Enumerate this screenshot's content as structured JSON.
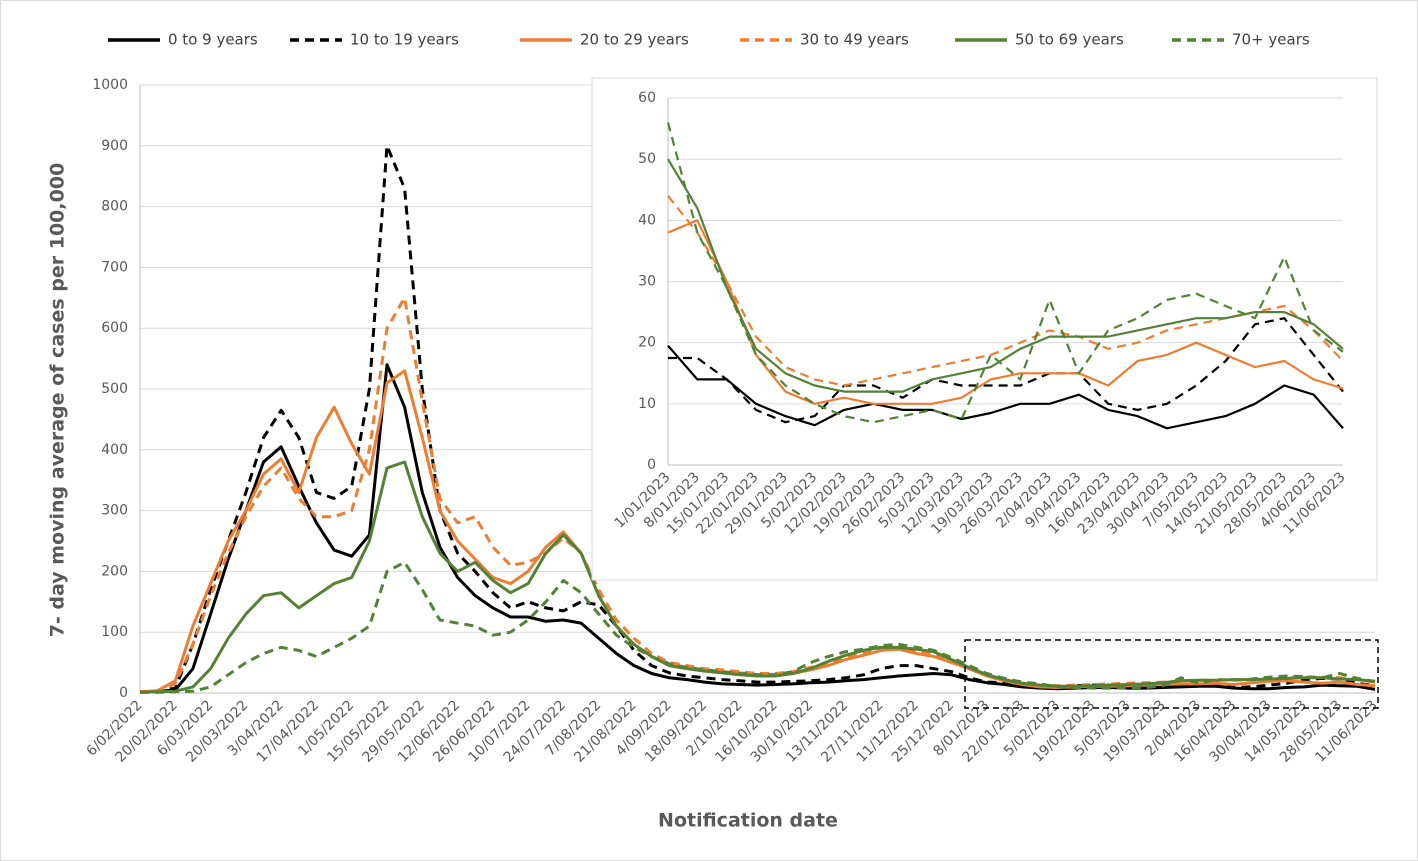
{
  "chart_data": [
    {
      "type": "line",
      "x_label": "Notification date",
      "y_label": "7- day moving average of cases per 100,000",
      "categories": [
        "6/02/2022",
        null,
        "20/02/2022",
        null,
        "6/03/2022",
        null,
        "20/03/2022",
        null,
        "3/04/2022",
        null,
        "17/04/2022",
        null,
        "1/05/2022",
        null,
        "15/05/2022",
        null,
        "29/05/2022",
        null,
        "12/06/2022",
        null,
        "26/06/2022",
        null,
        "10/07/2022",
        null,
        "24/07/2022",
        null,
        "7/08/2022",
        null,
        "21/08/2022",
        null,
        "4/09/2022",
        null,
        "18/09/2022",
        null,
        "2/10/2022",
        null,
        "16/10/2022",
        null,
        "30/10/2022",
        null,
        "13/11/2022",
        null,
        "27/11/2022",
        null,
        "11/12/2022",
        null,
        "25/12/2022",
        null,
        "8/01/2023",
        null,
        "22/01/2023",
        null,
        "5/02/2023",
        null,
        "19/02/2023",
        null,
        "5/03/2023",
        null,
        "19/03/2023",
        null,
        "2/04/2023",
        null,
        "16/04/2023",
        null,
        "30/04/2023",
        null,
        "14/05/2023",
        null,
        "28/05/2023",
        null,
        "11/06/2023"
      ],
      "ylim": [
        0,
        1000
      ],
      "yticks": [
        0,
        100,
        200,
        300,
        400,
        500,
        600,
        700,
        800,
        900,
        1000
      ],
      "grid": true,
      "legend": "top",
      "series": [
        {
          "name": "0 to 9 years",
          "color": "#000000",
          "dashed": false,
          "values": [
            2,
            3,
            5,
            40,
            130,
            220,
            300,
            380,
            405,
            340,
            280,
            235,
            225,
            260,
            540,
            470,
            330,
            240,
            190,
            160,
            140,
            125,
            125,
            118,
            120,
            115,
            90,
            65,
            45,
            32,
            25,
            22,
            18,
            15,
            14,
            13,
            14,
            15,
            17,
            18,
            20,
            22,
            25,
            28,
            30,
            32,
            30,
            22,
            17,
            14,
            10,
            8,
            7,
            8,
            9,
            9,
            8,
            8,
            9,
            10,
            11,
            11,
            8,
            7,
            7,
            9,
            10,
            13,
            12,
            11,
            6
          ]
        },
        {
          "name": "10 to 19 years",
          "color": "#000000",
          "dashed": true,
          "values": [
            2,
            3,
            8,
            80,
            170,
            250,
            330,
            420,
            465,
            420,
            330,
            320,
            340,
            500,
            900,
            830,
            500,
            300,
            230,
            200,
            165,
            140,
            150,
            140,
            135,
            150,
            145,
            110,
            70,
            45,
            33,
            28,
            25,
            22,
            20,
            18,
            18,
            19,
            20,
            22,
            25,
            30,
            40,
            45,
            45,
            40,
            35,
            25,
            18,
            17,
            15,
            10,
            8,
            12,
            13,
            13,
            13,
            12,
            13,
            14,
            14,
            16,
            9,
            10,
            13,
            16,
            22,
            24,
            23,
            16,
            12
          ]
        },
        {
          "name": "20 to 29 years",
          "color": "#ed7d31",
          "dashed": false,
          "values": [
            2,
            4,
            20,
            110,
            180,
            250,
            300,
            360,
            385,
            330,
            420,
            470,
            410,
            360,
            510,
            530,
            420,
            300,
            250,
            220,
            190,
            180,
            200,
            240,
            265,
            230,
            160,
            110,
            80,
            60,
            45,
            42,
            38,
            35,
            33,
            30,
            30,
            32,
            38,
            45,
            55,
            62,
            70,
            72,
            65,
            60,
            50,
            40,
            28,
            20,
            14,
            10,
            9,
            10,
            11,
            11,
            12,
            13,
            14,
            15,
            15,
            16,
            14,
            17,
            19,
            20,
            18,
            16,
            18,
            14,
            12
          ]
        },
        {
          "name": "30 to 49 years",
          "color": "#ed7d31",
          "dashed": true,
          "values": [
            2,
            3,
            15,
            80,
            160,
            230,
            290,
            340,
            370,
            320,
            290,
            290,
            300,
            400,
            600,
            650,
            480,
            320,
            280,
            290,
            240,
            210,
            215,
            230,
            255,
            230,
            170,
            120,
            90,
            65,
            50,
            45,
            40,
            38,
            35,
            32,
            32,
            35,
            42,
            50,
            58,
            65,
            72,
            75,
            70,
            62,
            52,
            42,
            30,
            22,
            16,
            13,
            12,
            13,
            14,
            15,
            16,
            17,
            18,
            20,
            21,
            21,
            22,
            22,
            23,
            25,
            26,
            26,
            25,
            22,
            18
          ]
        },
        {
          "name": "50 to 69 years",
          "color": "#538135",
          "dashed": false,
          "values": [
            1,
            2,
            3,
            10,
            40,
            90,
            130,
            160,
            165,
            140,
            160,
            180,
            190,
            250,
            370,
            380,
            290,
            230,
            200,
            215,
            185,
            165,
            180,
            230,
            260,
            230,
            160,
            110,
            80,
            60,
            45,
            40,
            36,
            33,
            30,
            28,
            28,
            32,
            40,
            52,
            62,
            70,
            75,
            75,
            72,
            68,
            55,
            42,
            30,
            22,
            16,
            13,
            11,
            11,
            12,
            13,
            14,
            15,
            17,
            20,
            21,
            21,
            22,
            22,
            23,
            24,
            25,
            25,
            23,
            22,
            19
          ]
        },
        {
          "name": "70+ years",
          "color": "#538135",
          "dashed": true,
          "values": [
            1,
            1,
            2,
            3,
            10,
            30,
            50,
            65,
            75,
            70,
            60,
            75,
            90,
            110,
            200,
            215,
            170,
            120,
            115,
            110,
            95,
            100,
            120,
            150,
            185,
            165,
            130,
            95,
            75,
            60,
            48,
            42,
            38,
            35,
            32,
            30,
            30,
            35,
            50,
            60,
            68,
            72,
            78,
            80,
            75,
            70,
            58,
            45,
            32,
            24,
            18,
            15,
            10,
            9,
            8,
            8,
            9,
            9,
            12,
            25,
            16,
            22,
            21,
            23,
            26,
            28,
            27,
            25,
            32,
            24,
            19
          ]
        }
      ]
    },
    {
      "type": "line",
      "categories": [
        "1/01/2023",
        "8/01/2023",
        "15/01/2023",
        "22/01/2023",
        "29/01/2023",
        "5/02/2023",
        "12/02/2023",
        "19/02/2023",
        "26/02/2023",
        "5/03/2023",
        "12/03/2023",
        "19/03/2023",
        "26/03/2023",
        "2/04/2023",
        "9/04/2023",
        "16/04/2023",
        "23/04/2023",
        "30/04/2023",
        "7/05/2023",
        "14/05/2023",
        "21/05/2023",
        "28/05/2023",
        "4/06/2023",
        "11/06/2023"
      ],
      "ylim": [
        0,
        60
      ],
      "yticks": [
        0,
        10,
        20,
        30,
        40,
        50,
        60
      ],
      "grid": true,
      "series": [
        {
          "color": "#000000",
          "dashed": false,
          "values": [
            19.5,
            14,
            14,
            10,
            8,
            6.5,
            9,
            10,
            9,
            9,
            7.5,
            8.5,
            10,
            10,
            11.5,
            9,
            8,
            6,
            7,
            8,
            10,
            13,
            11.5,
            6
          ]
        },
        {
          "color": "#000000",
          "dashed": true,
          "values": [
            17.5,
            17.5,
            14,
            9,
            7,
            8,
            13,
            13,
            11,
            14,
            13,
            13,
            13,
            15,
            15,
            10,
            9,
            10,
            13,
            17,
            23,
            24,
            18,
            12
          ]
        },
        {
          "color": "#ed7d31",
          "dashed": false,
          "values": [
            38,
            40,
            30,
            18,
            12,
            10,
            11,
            10,
            10,
            10,
            11,
            14,
            15,
            15,
            15,
            13,
            17,
            18,
            20,
            18,
            16,
            17,
            14,
            12.5
          ]
        },
        {
          "color": "#ed7d31",
          "dashed": true,
          "values": [
            44,
            38,
            30,
            21,
            16,
            14,
            13,
            14,
            15,
            16,
            17,
            18,
            20,
            22,
            21,
            19,
            20,
            22,
            23,
            24,
            25,
            26,
            22,
            17
          ]
        },
        {
          "color": "#538135",
          "dashed": false,
          "values": [
            50,
            42,
            29,
            19,
            15,
            13,
            12,
            12,
            12,
            14,
            15,
            16,
            19,
            21,
            21,
            21,
            22,
            23,
            24,
            24,
            25,
            25,
            23,
            19
          ]
        },
        {
          "color": "#538135",
          "dashed": true,
          "values": [
            56,
            38,
            29,
            18,
            13,
            10,
            8,
            7,
            8,
            9,
            7.5,
            18,
            14,
            27,
            15,
            22,
            24,
            27,
            28,
            26,
            24,
            34,
            22,
            18.5
          ]
        }
      ]
    }
  ]
}
